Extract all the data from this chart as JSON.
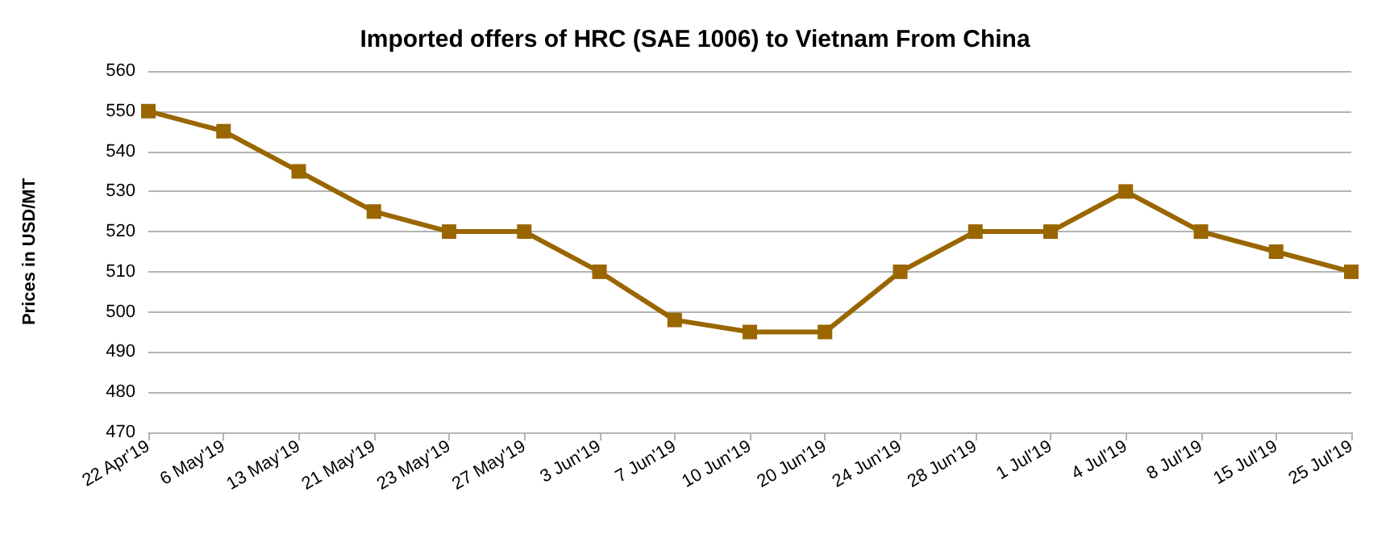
{
  "chart_data": {
    "type": "line",
    "title": "Imported offers of HRC (SAE 1006) to Vietnam From China",
    "ylabel": "Prices in USD/MT",
    "categories": [
      "22 Apr'19",
      "6 May'19",
      "13 May'19",
      "21 May'19",
      "23 May'19",
      "27 May'19",
      "3 Jun'19",
      "7 Jun'19",
      "10 Jun'19",
      "20 Jun'19",
      "24 Jun'19",
      "28 Jun'19",
      "1 Jul'19",
      "4 Jul'19",
      "8 Jul'19",
      "15 Jul'19",
      "25 Jul'19"
    ],
    "series": [
      {
        "color": "#996600",
        "values": [
          550,
          545,
          535,
          525,
          520,
          520,
          510,
          498,
          495,
          495,
          510,
          520,
          520,
          530,
          520,
          515,
          510
        ]
      }
    ],
    "ylim": [
      470,
      560
    ],
    "yticks": [
      470,
      480,
      490,
      500,
      510,
      520,
      530,
      540,
      550,
      560
    ],
    "grid": "y",
    "marker": "square",
    "line_style": "solid"
  }
}
